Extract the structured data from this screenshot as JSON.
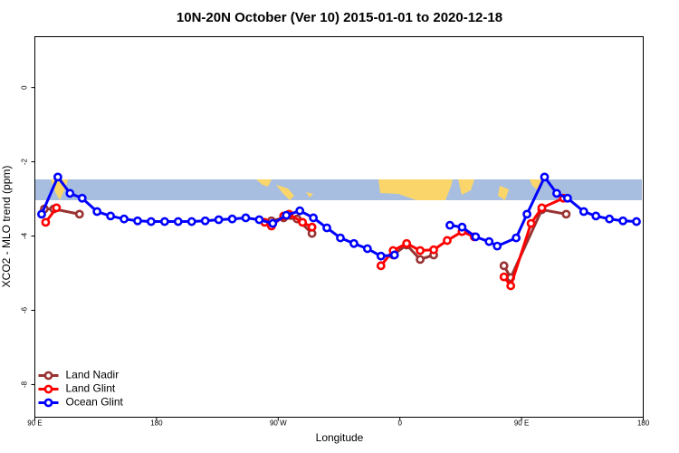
{
  "chart_data": {
    "type": "line",
    "title": "10N-20N October (Ver 10)   2015-01-01 to 2020-12-18",
    "x_label": "Longitude",
    "y_label": "XCO2 - MLO trend (ppm)",
    "xlim": [
      90,
      540
    ],
    "ylim": [
      -8.88,
      1.37
    ],
    "xticks": [
      {
        "value": 90,
        "label": "90 E"
      },
      {
        "value": 180,
        "label": "180"
      },
      {
        "value": 270,
        "label": "90 W"
      },
      {
        "value": 360,
        "label": "0"
      },
      {
        "value": 450,
        "label": "90 E"
      },
      {
        "value": 540,
        "label": "180"
      }
    ],
    "yticks": [
      0,
      -2,
      -4,
      -6,
      -8
    ],
    "legend": "bottomleft",
    "series": [
      {
        "name": "Land Nadir",
        "color": "#993333",
        "x": [
          97,
          104,
          123,
          194,
          265,
          274,
          284,
          295,
          325,
          355,
          365,
          375,
          385,
          411,
          437,
          442,
          465,
          483
        ],
        "values": [
          -3.27,
          -3.27,
          -3.41,
          null,
          -3.59,
          -3.51,
          -3.54,
          -3.93,
          null,
          -4.51,
          -4.24,
          -4.63,
          -4.51,
          null,
          -4.8,
          -5.12,
          -3.29,
          -3.41
        ]
      },
      {
        "name": "Land Glint",
        "color": "#ff0000",
        "x": [
          98,
          106,
          183,
          260,
          265,
          274,
          278,
          288,
          295,
          320,
          346,
          355,
          365,
          375,
          385,
          395,
          406,
          415,
          426,
          437,
          442,
          457,
          465,
          481
        ],
        "values": [
          -3.63,
          -3.24,
          null,
          -3.63,
          -3.73,
          -3.46,
          -3.41,
          -3.63,
          -3.76,
          null,
          -4.8,
          -4.39,
          -4.2,
          -4.39,
          -4.37,
          -4.12,
          -3.88,
          -4.02,
          null,
          -5.1,
          -5.34,
          -3.66,
          -3.24,
          -2.98
        ]
      },
      {
        "name": "Ocean Glint",
        "color": "#0000ff",
        "x": [
          95,
          107,
          116,
          125,
          136,
          146,
          156,
          166,
          176,
          186,
          196,
          206,
          216,
          226,
          236,
          246,
          256,
          266,
          276,
          286,
          296,
          306,
          316,
          326,
          336,
          346,
          356,
          376,
          397,
          406,
          416,
          426,
          432,
          446,
          454,
          467,
          476,
          484,
          496,
          505,
          515,
          525,
          535
        ],
        "values": [
          -3.41,
          -2.41,
          -2.85,
          -2.98,
          -3.34,
          -3.46,
          -3.54,
          -3.59,
          -3.61,
          -3.61,
          -3.61,
          -3.61,
          -3.59,
          -3.56,
          -3.54,
          -3.51,
          -3.56,
          -3.66,
          -3.44,
          -3.32,
          -3.51,
          -3.78,
          -4.05,
          -4.2,
          -4.34,
          -4.54,
          -4.51,
          null,
          -3.71,
          -3.76,
          -4.02,
          -4.15,
          -4.27,
          -4.05,
          -3.41,
          -2.41,
          -2.85,
          -2.98,
          -3.34,
          -3.46,
          -3.54,
          -3.59,
          -3.61
        ]
      }
    ]
  }
}
